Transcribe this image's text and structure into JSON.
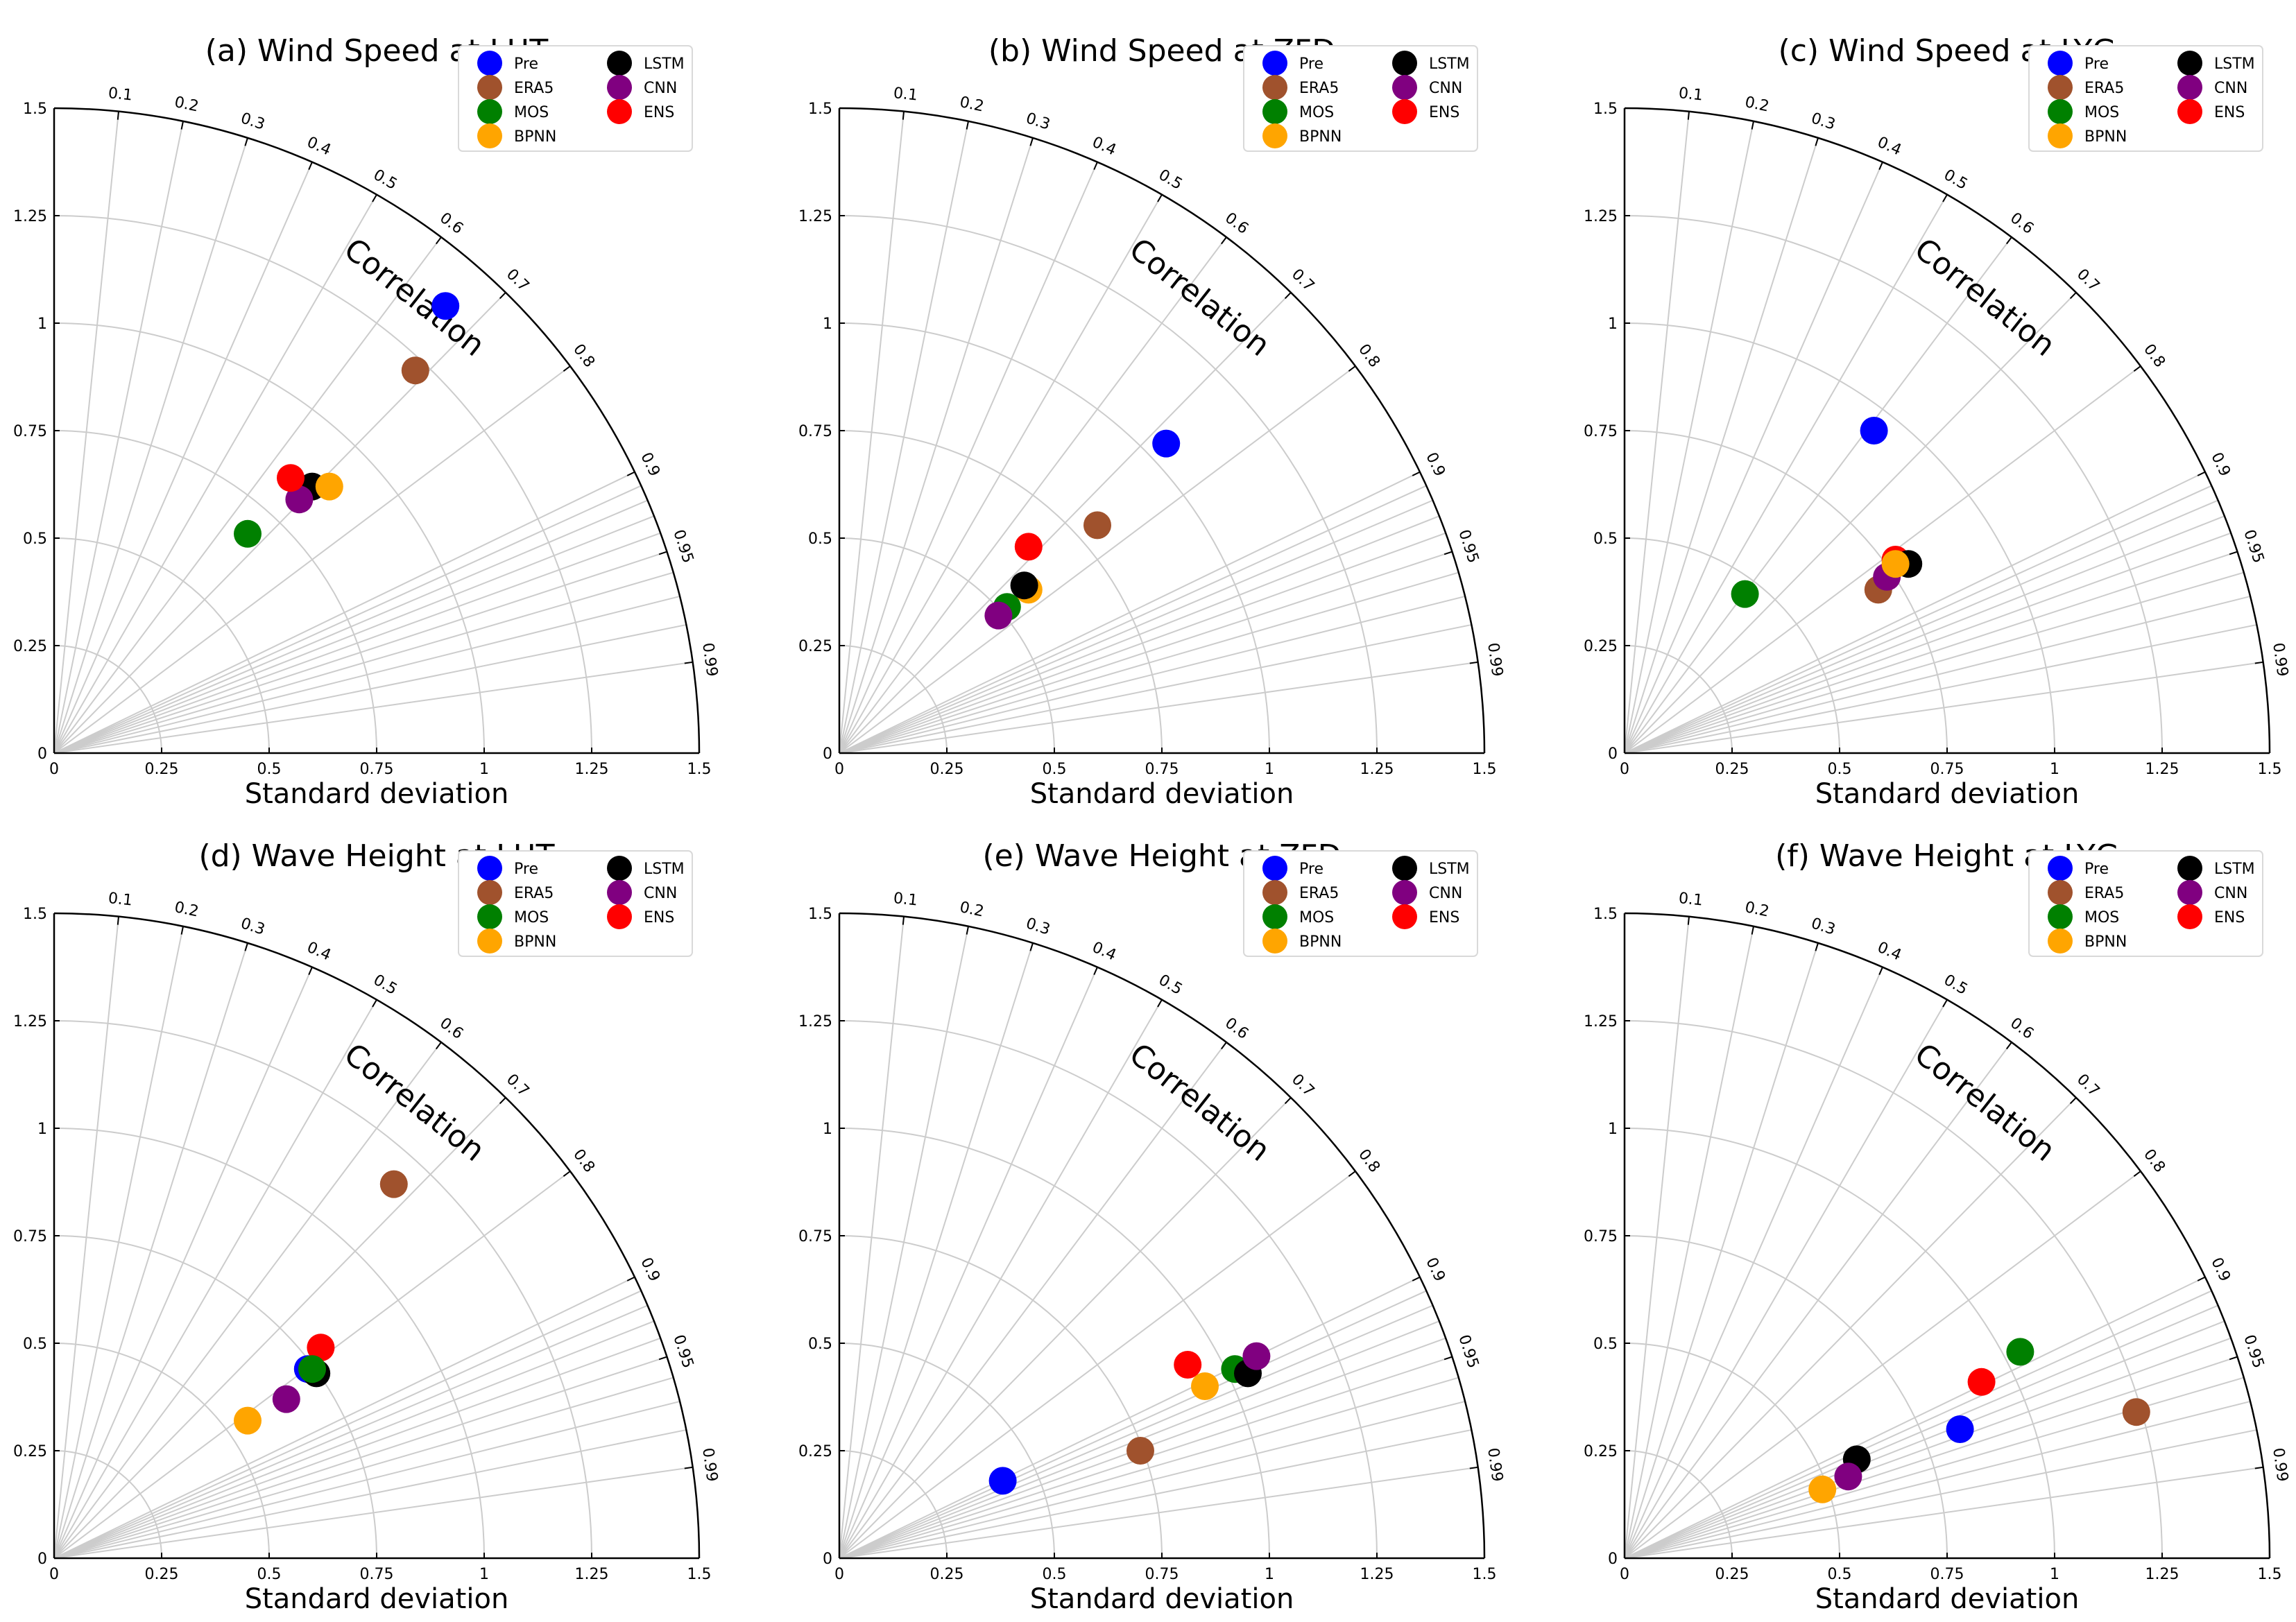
{
  "figure": {
    "shared": {
      "type": "scatter",
      "xlabel": "Standard deviation",
      "correlation_label": "Correlation",
      "axis_range": [
        0,
        1.5
      ],
      "radial_ticks": [
        0,
        0.25,
        0.5,
        0.75,
        1,
        1.25,
        1.5
      ],
      "correlation_ticks": [
        0.1,
        0.2,
        0.3,
        0.4,
        0.5,
        0.6,
        0.7,
        0.8,
        0.9,
        0.95,
        0.99
      ],
      "grid": true,
      "legend_position": "top-right"
    },
    "legend": [
      {
        "name": "Pre",
        "color": "#0000ff"
      },
      {
        "name": "LSTM",
        "color": "#000000"
      },
      {
        "name": "ERA5",
        "color": "#a0522d"
      },
      {
        "name": "CNN",
        "color": "#800080"
      },
      {
        "name": "MOS",
        "color": "#008000"
      },
      {
        "name": "ENS",
        "color": "#ff0000"
      },
      {
        "name": "BPNN",
        "color": "#ffa500"
      }
    ]
  },
  "chart_data": [
    {
      "type": "scatter",
      "title": "(a) Wind Speed at LHT",
      "xlabel": "Standard deviation",
      "series": [
        {
          "name": "Pre",
          "x": 0.91,
          "y": 1.04
        },
        {
          "name": "ERA5",
          "x": 0.84,
          "y": 0.89
        },
        {
          "name": "LSTM",
          "x": 0.6,
          "y": 0.62
        },
        {
          "name": "BPNN",
          "x": 0.64,
          "y": 0.62
        },
        {
          "name": "CNN",
          "x": 0.57,
          "y": 0.59
        },
        {
          "name": "ENS",
          "x": 0.55,
          "y": 0.64
        },
        {
          "name": "MOS",
          "x": 0.45,
          "y": 0.51
        }
      ]
    },
    {
      "type": "scatter",
      "title": "(b) Wind Speed at ZFD",
      "xlabel": "Standard deviation",
      "series": [
        {
          "name": "Pre",
          "x": 0.76,
          "y": 0.72
        },
        {
          "name": "ERA5",
          "x": 0.6,
          "y": 0.53
        },
        {
          "name": "ENS",
          "x": 0.44,
          "y": 0.48
        },
        {
          "name": "BPNN",
          "x": 0.44,
          "y": 0.38
        },
        {
          "name": "LSTM",
          "x": 0.43,
          "y": 0.39
        },
        {
          "name": "MOS",
          "x": 0.39,
          "y": 0.34
        },
        {
          "name": "CNN",
          "x": 0.37,
          "y": 0.32
        }
      ]
    },
    {
      "type": "scatter",
      "title": "(c) Wind Speed at LYG",
      "xlabel": "Standard deviation",
      "series": [
        {
          "name": "Pre",
          "x": 0.58,
          "y": 0.75
        },
        {
          "name": "MOS",
          "x": 0.28,
          "y": 0.37
        },
        {
          "name": "ERA5",
          "x": 0.59,
          "y": 0.38
        },
        {
          "name": "CNN",
          "x": 0.61,
          "y": 0.41
        },
        {
          "name": "ENS",
          "x": 0.63,
          "y": 0.45
        },
        {
          "name": "LSTM",
          "x": 0.66,
          "y": 0.44
        },
        {
          "name": "BPNN",
          "x": 0.63,
          "y": 0.44
        }
      ]
    },
    {
      "type": "scatter",
      "title": "(d) Wave Height at LHT",
      "xlabel": "Standard deviation",
      "series": [
        {
          "name": "ERA5",
          "x": 0.79,
          "y": 0.87
        },
        {
          "name": "ENS",
          "x": 0.62,
          "y": 0.49
        },
        {
          "name": "Pre",
          "x": 0.59,
          "y": 0.44
        },
        {
          "name": "LSTM",
          "x": 0.61,
          "y": 0.43
        },
        {
          "name": "MOS",
          "x": 0.6,
          "y": 0.44
        },
        {
          "name": "CNN",
          "x": 0.54,
          "y": 0.37
        },
        {
          "name": "BPNN",
          "x": 0.45,
          "y": 0.32
        }
      ]
    },
    {
      "type": "scatter",
      "title": "(e) Wave Height at ZFD",
      "xlabel": "Standard deviation",
      "series": [
        {
          "name": "Pre",
          "x": 0.38,
          "y": 0.18
        },
        {
          "name": "ERA5",
          "x": 0.7,
          "y": 0.25
        },
        {
          "name": "ENS",
          "x": 0.81,
          "y": 0.45
        },
        {
          "name": "BPNN",
          "x": 0.85,
          "y": 0.4
        },
        {
          "name": "MOS",
          "x": 0.92,
          "y": 0.44
        },
        {
          "name": "LSTM",
          "x": 0.95,
          "y": 0.43
        },
        {
          "name": "CNN",
          "x": 0.97,
          "y": 0.47
        }
      ]
    },
    {
      "type": "scatter",
      "title": "(f) Wave Height at LYG",
      "xlabel": "Standard deviation",
      "series": [
        {
          "name": "ERA5",
          "x": 1.19,
          "y": 0.34
        },
        {
          "name": "MOS",
          "x": 0.92,
          "y": 0.48
        },
        {
          "name": "ENS",
          "x": 0.83,
          "y": 0.41
        },
        {
          "name": "Pre",
          "x": 0.78,
          "y": 0.3
        },
        {
          "name": "LSTM",
          "x": 0.54,
          "y": 0.23
        },
        {
          "name": "CNN",
          "x": 0.52,
          "y": 0.19
        },
        {
          "name": "BPNN",
          "x": 0.46,
          "y": 0.16
        }
      ]
    }
  ]
}
